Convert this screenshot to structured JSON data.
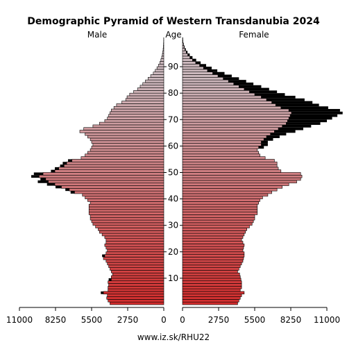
{
  "chart_data": {
    "type": "bar",
    "orientation": "horizontal-pyramid",
    "title": "Demographic Pyramid of Western Transdanubia 2024",
    "left_label": "Male",
    "center_label": "Age",
    "right_label": "Female",
    "footer": "www.iz.sk/RHU22",
    "x_ticks_left": [
      "11000",
      "8250",
      "5500",
      "2750",
      "0"
    ],
    "x_ticks_right": [
      "0",
      "2750",
      "5500",
      "8250",
      "11000"
    ],
    "xlim": [
      0,
      11000
    ],
    "age_ticks": [
      10,
      20,
      30,
      40,
      50,
      60,
      70,
      80,
      90
    ],
    "ages": [
      0,
      1,
      2,
      3,
      4,
      5,
      6,
      7,
      8,
      9,
      10,
      11,
      12,
      13,
      14,
      15,
      16,
      17,
      18,
      19,
      20,
      21,
      22,
      23,
      24,
      25,
      26,
      27,
      28,
      29,
      30,
      31,
      32,
      33,
      34,
      35,
      36,
      37,
      38,
      39,
      40,
      41,
      42,
      43,
      44,
      45,
      46,
      47,
      48,
      49,
      50,
      51,
      52,
      53,
      54,
      55,
      56,
      57,
      58,
      59,
      60,
      61,
      62,
      63,
      64,
      65,
      66,
      67,
      68,
      69,
      70,
      71,
      72,
      73,
      74,
      75,
      76,
      77,
      78,
      79,
      80,
      81,
      82,
      83,
      84,
      85,
      86,
      87,
      88,
      89,
      90,
      91,
      92,
      93,
      94,
      95,
      96,
      97,
      98,
      99,
      100
    ],
    "series": [
      {
        "name": "Male",
        "color": "#d0202a",
        "values": [
          4100,
          4250,
          4350,
          4300,
          4600,
          4250,
          4250,
          4200,
          4250,
          4000,
          4000,
          3900,
          4000,
          4100,
          4200,
          4300,
          4400,
          4600,
          4500,
          4400,
          4300,
          4400,
          4500,
          4400,
          4400,
          4500,
          4700,
          4900,
          5000,
          5200,
          5400,
          5500,
          5600,
          5600,
          5700,
          5700,
          5700,
          5700,
          5600,
          5800,
          6000,
          6200,
          6800,
          7200,
          7800,
          8300,
          8800,
          9000,
          9500,
          9200,
          8300,
          8000,
          7600,
          7400,
          7000,
          6300,
          6000,
          5800,
          5600,
          5500,
          5400,
          5500,
          5600,
          5800,
          6000,
          6400,
          6100,
          5400,
          4900,
          4500,
          4300,
          4200,
          4100,
          4000,
          3800,
          3600,
          3200,
          2900,
          2800,
          2600,
          2300,
          2000,
          1800,
          1600,
          1400,
          1200,
          1000,
          800,
          650,
          520,
          400,
          300,
          220,
          160,
          110,
          75,
          50,
          32,
          20,
          12,
          8
        ]
      },
      {
        "name": "Male surplus",
        "color": "#000000",
        "values": [
          0,
          0,
          0,
          0,
          200,
          0,
          0,
          0,
          0,
          200,
          0,
          0,
          0,
          0,
          0,
          0,
          0,
          0,
          200,
          0,
          0,
          0,
          0,
          0,
          0,
          0,
          0,
          0,
          0,
          0,
          0,
          0,
          0,
          0,
          0,
          0,
          0,
          0,
          0,
          0,
          0,
          0,
          300,
          300,
          450,
          600,
          800,
          400,
          600,
          700,
          300,
          300,
          300,
          300,
          300,
          0,
          0,
          0,
          0,
          0,
          0,
          0,
          0,
          0,
          0,
          0,
          0,
          0,
          0,
          0,
          0,
          0,
          0,
          0,
          0,
          0,
          0,
          0,
          0,
          0,
          0,
          0,
          0,
          0,
          0,
          0,
          0,
          0,
          0,
          0,
          0,
          0,
          0,
          0,
          0,
          0,
          0,
          0,
          0,
          0,
          0
        ]
      },
      {
        "name": "Female",
        "color": "#d0202a",
        "values": [
          4200,
          4300,
          4400,
          4500,
          4700,
          4400,
          4500,
          4500,
          4500,
          4450,
          4400,
          4350,
          4200,
          4300,
          4400,
          4500,
          4600,
          4650,
          4700,
          4700,
          4600,
          4650,
          4700,
          4600,
          4500,
          4600,
          4700,
          4800,
          4900,
          5100,
          5300,
          5400,
          5500,
          5500,
          5700,
          5700,
          5700,
          5700,
          5800,
          5900,
          6100,
          6500,
          6800,
          7200,
          7600,
          8100,
          8700,
          9000,
          9100,
          9000,
          7500,
          7300,
          7200,
          7200,
          7000,
          6300,
          5900,
          5800,
          5700,
          5800,
          6000,
          6000,
          6200,
          6400,
          6700,
          7000,
          7300,
          7600,
          7900,
          8000,
          8100,
          8200,
          8300,
          8100,
          7500,
          7100,
          6800,
          6400,
          6000,
          5500,
          5100,
          4700,
          4300,
          3900,
          3500,
          3100,
          2700,
          2300,
          1900,
          1600,
          1300,
          1000,
          760,
          560,
          400,
          280,
          180,
          110,
          65,
          35,
          20
        ]
      },
      {
        "name": "Female surplus",
        "color": "#000000",
        "values": [
          0,
          0,
          0,
          0,
          0,
          0,
          0,
          0,
          0,
          0,
          0,
          0,
          0,
          0,
          0,
          0,
          0,
          0,
          0,
          0,
          0,
          0,
          0,
          0,
          0,
          0,
          0,
          0,
          0,
          0,
          0,
          0,
          0,
          0,
          0,
          0,
          0,
          0,
          0,
          0,
          0,
          0,
          0,
          0,
          0,
          0,
          0,
          0,
          0,
          0,
          0,
          0,
          0,
          0,
          0,
          0,
          0,
          0,
          0,
          400,
          500,
          500,
          700,
          1000,
          1200,
          1600,
          1900,
          2200,
          2600,
          3000,
          3300,
          3600,
          3900,
          3900,
          3600,
          3300,
          3100,
          2900,
          2600,
          2300,
          2100,
          1900,
          1700,
          1500,
          1350,
          1200,
          1050,
          900,
          750,
          620,
          500,
          380,
          280,
          200,
          150,
          100,
          70,
          45,
          28,
          16,
          9
        ]
      }
    ]
  }
}
